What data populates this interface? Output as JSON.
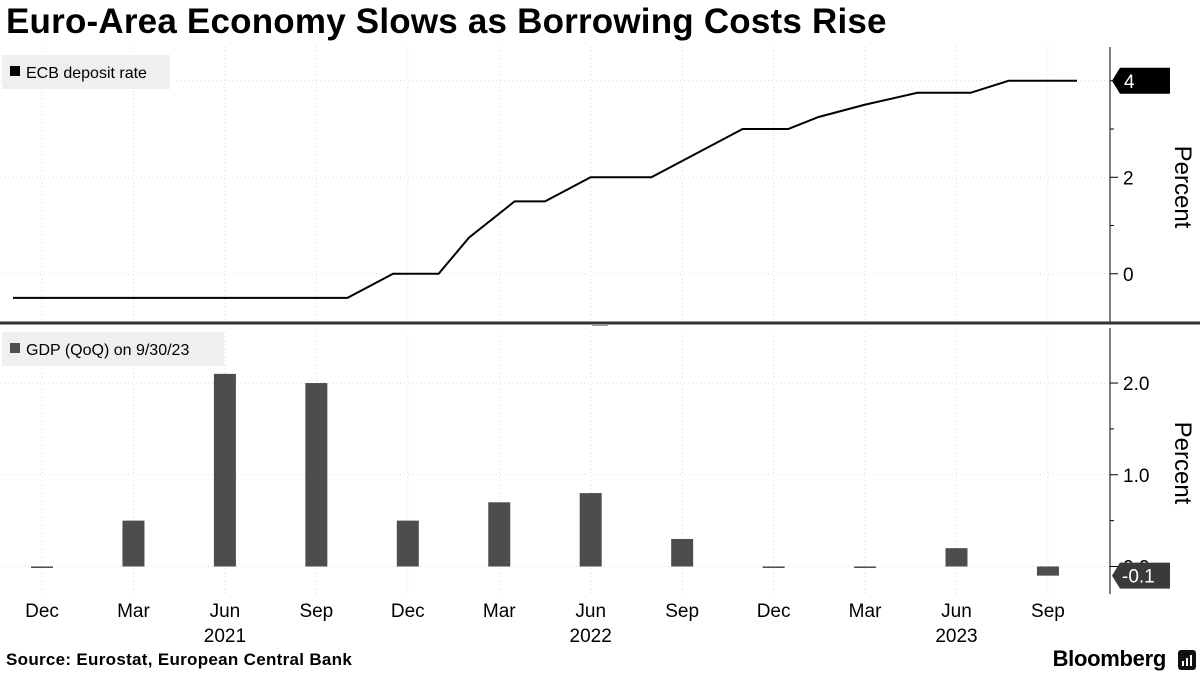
{
  "title": "Euro-Area Economy Slows as Borrowing Costs Rise",
  "source": "Source: Eurostat, European Central Bank",
  "brand": "Bloomberg",
  "brand_icon": "bloomberg-terminal-icon",
  "colors": {
    "line": "#000000",
    "bar": "#4d4d4d",
    "grid": "#d9d9d9",
    "legend_bg": "#efefef",
    "divider": "#333333"
  },
  "chart_data": [
    {
      "type": "line",
      "legend": "ECB deposit rate",
      "ylabel": "Percent",
      "ylim": [
        -1.0,
        4.7
      ],
      "yticks": [
        0,
        2,
        4
      ],
      "tick_labels": [
        "0",
        "2"
      ],
      "last_value_label": "4",
      "series": [
        {
          "name": "ECB deposit rate",
          "x": [
            0,
            17,
            20,
            22,
            25,
            28,
            30,
            33,
            35,
            38,
            42,
            45,
            48,
            51,
            53,
            56,
            59.5,
            62,
            63,
            65.5,
            66,
            67,
            70
          ],
          "values": [
            -0.5,
            -0.5,
            -0.5,
            -0.5,
            0,
            0,
            0.75,
            1.5,
            1.5,
            2,
            2,
            2.5,
            3,
            3,
            3.25,
            3.5,
            3.75,
            3.75,
            3.75,
            4,
            4,
            4,
            4
          ]
        }
      ]
    },
    {
      "type": "bar",
      "legend": "GDP (QoQ) on 9/30/23",
      "ylabel": "Percent",
      "ylim": [
        -0.3,
        2.6
      ],
      "yticks": [
        0.0,
        1.0,
        2.0
      ],
      "tick_labels": [
        "0.0",
        "1.0",
        "2.0"
      ],
      "last_value_label": "-0.1",
      "categories": [
        "Dec 2020",
        "Mar 2021",
        "Jun 2021",
        "Sep 2021",
        "Dec 2021",
        "Mar 2022",
        "Jun 2022",
        "Sep 2022",
        "Dec 2022",
        "Mar 2023",
        "Jun 2023",
        "Sep 2023"
      ],
      "values": [
        0.0,
        0.5,
        2.1,
        2.0,
        0.5,
        0.7,
        0.8,
        0.3,
        0.0,
        0.0,
        0.2,
        -0.1
      ]
    }
  ],
  "x_axis": {
    "months": [
      "Dec",
      "Mar",
      "Jun",
      "Sep",
      "Dec",
      "Mar",
      "Jun",
      "Sep",
      "Dec",
      "Mar",
      "Jun",
      "Sep"
    ],
    "years": [
      {
        "label": "2021",
        "index": 2
      },
      {
        "label": "2022",
        "index": 6
      },
      {
        "label": "2023",
        "index": 10
      }
    ]
  }
}
